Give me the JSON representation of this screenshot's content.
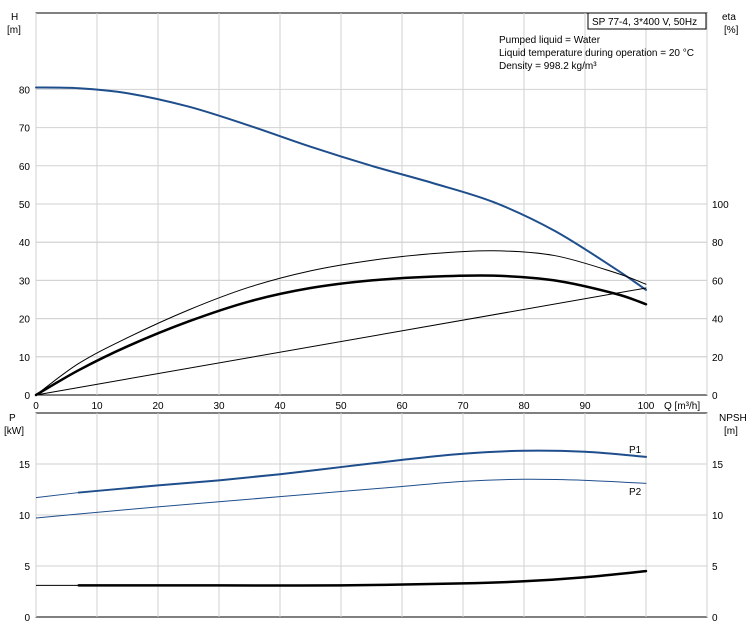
{
  "model_label": "SP 77-4, 3*400 V, 50Hz",
  "liquid_info": [
    "Pumped liquid = Water",
    "Liquid temperature during operation = 20 °C",
    "Density = 998.2 kg/m³"
  ],
  "colors": {
    "blue": "#1f4e8c",
    "black": "#000000",
    "grid": "#d2d2d2"
  },
  "chart_data": [
    {
      "type": "line",
      "panel": "top",
      "xlabel": "Q [m³/h]",
      "ylabel_left": [
        "H",
        "[m]"
      ],
      "ylabel_right": [
        "eta",
        "[%]"
      ],
      "xlim": [
        0,
        110
      ],
      "ylim_left": [
        0,
        100
      ],
      "ylim_right": [
        0,
        200
      ],
      "x_ticks": [
        0,
        10,
        20,
        30,
        40,
        50,
        60,
        70,
        80,
        90,
        100
      ],
      "y_ticks_left": [
        0,
        10,
        20,
        30,
        40,
        50,
        60,
        70,
        80
      ],
      "y_ticks_right": [
        0,
        20,
        40,
        60,
        80,
        100
      ],
      "grid": true,
      "series": [
        {
          "axis": "left",
          "color": "#1f4e8c",
          "width": 2,
          "points": [
            [
              0,
              80.5
            ],
            [
              7,
              80.3
            ],
            [
              15,
              79
            ],
            [
              25,
              75.5
            ],
            [
              35,
              70.5
            ],
            [
              45,
              65
            ],
            [
              55,
              60
            ],
            [
              65,
              55.5
            ],
            [
              75,
              50.5
            ],
            [
              85,
              43
            ],
            [
              95,
              33
            ],
            [
              100,
              27.5
            ]
          ]
        },
        {
          "axis": "right",
          "color": "#000000",
          "width": 1,
          "dash": [
            [
              0,
              0
            ],
            [
              7,
              5
            ],
            [
              100,
              5.5
            ]
          ],
          "points": [
            [
              0,
              0
            ],
            [
              7,
              16.5
            ],
            [
              15,
              30
            ],
            [
              25,
              44.5
            ],
            [
              35,
              56.5
            ],
            [
              45,
              65
            ],
            [
              55,
              70.5
            ],
            [
              65,
              74
            ],
            [
              75,
              75.5
            ],
            [
              85,
              73
            ],
            [
              95,
              64
            ],
            [
              100,
              58
            ]
          ]
        },
        {
          "axis": "right",
          "color": "#000000",
          "width": 2.5,
          "points": [
            [
              0,
              0
            ],
            [
              7,
              13
            ],
            [
              15,
              25.5
            ],
            [
              25,
              38.5
            ],
            [
              35,
              49
            ],
            [
              45,
              56
            ],
            [
              55,
              60
            ],
            [
              65,
              62
            ],
            [
              75,
              62.5
            ],
            [
              85,
              60
            ],
            [
              95,
              53
            ],
            [
              100,
              47.5
            ]
          ]
        },
        {
          "axis": "right",
          "color": "#000000",
          "width": 1,
          "points": [
            [
              0,
              0
            ],
            [
              100,
              56
            ]
          ]
        }
      ]
    },
    {
      "type": "line",
      "panel": "bottom",
      "ylabel_left": [
        "P",
        "[kW]"
      ],
      "ylabel_right": [
        "NPSH",
        "[m]"
      ],
      "xlim": [
        0,
        110
      ],
      "ylim_left": [
        0,
        20
      ],
      "ylim_right": [
        0,
        20
      ],
      "y_ticks_left": [
        0,
        5,
        10,
        15
      ],
      "y_ticks_right": [
        0,
        5,
        10,
        15
      ],
      "grid": true,
      "series": [
        {
          "name": "P1",
          "axis": "left",
          "color": "#1f4e8c",
          "width": 2,
          "lead": [
            [
              0,
              11.7
            ],
            [
              7,
              12.2
            ]
          ],
          "points": [
            [
              7,
              12.2
            ],
            [
              20,
              12.9
            ],
            [
              30,
              13.4
            ],
            [
              40,
              14
            ],
            [
              50,
              14.7
            ],
            [
              60,
              15.4
            ],
            [
              70,
              16
            ],
            [
              80,
              16.3
            ],
            [
              90,
              16.2
            ],
            [
              100,
              15.7
            ]
          ]
        },
        {
          "name": "P2",
          "axis": "left",
          "color": "#1f4e8c",
          "width": 1,
          "lead": [
            [
              0,
              9.7
            ],
            [
              7,
              10.1
            ]
          ],
          "points": [
            [
              7,
              10.1
            ],
            [
              20,
              10.8
            ],
            [
              30,
              11.3
            ],
            [
              40,
              11.8
            ],
            [
              50,
              12.3
            ],
            [
              60,
              12.8
            ],
            [
              70,
              13.3
            ],
            [
              80,
              13.5
            ],
            [
              90,
              13.4
            ],
            [
              100,
              13.1
            ]
          ]
        },
        {
          "axis": "right",
          "color": "#000000",
          "width": 2.5,
          "lead": [
            [
              0,
              3.1
            ],
            [
              7,
              3.1
            ]
          ],
          "points": [
            [
              7,
              3.1
            ],
            [
              30,
              3.1
            ],
            [
              50,
              3.1
            ],
            [
              70,
              3.3
            ],
            [
              80,
              3.5
            ],
            [
              90,
              3.9
            ],
            [
              100,
              4.5
            ]
          ]
        }
      ]
    }
  ]
}
